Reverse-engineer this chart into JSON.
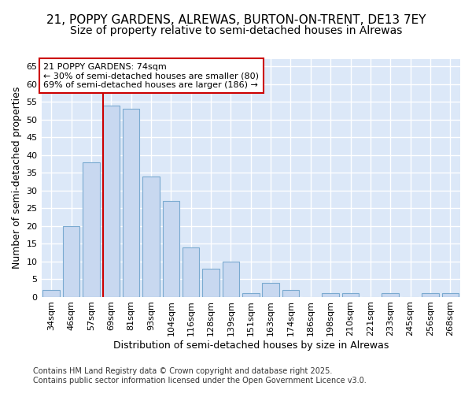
{
  "title_line1": "21, POPPY GARDENS, ALREWAS, BURTON-ON-TRENT, DE13 7EY",
  "title_line2": "Size of property relative to semi-detached houses in Alrewas",
  "xlabel": "Distribution of semi-detached houses by size in Alrewas",
  "ylabel": "Number of semi-detached properties",
  "categories": [
    "34sqm",
    "46sqm",
    "57sqm",
    "69sqm",
    "81sqm",
    "93sqm",
    "104sqm",
    "116sqm",
    "128sqm",
    "139sqm",
    "151sqm",
    "163sqm",
    "174sqm",
    "186sqm",
    "198sqm",
    "210sqm",
    "221sqm",
    "233sqm",
    "245sqm",
    "256sqm",
    "268sqm"
  ],
  "values": [
    2,
    20,
    38,
    54,
    53,
    34,
    27,
    14,
    8,
    10,
    1,
    4,
    2,
    0,
    1,
    1,
    0,
    1,
    0,
    1,
    1
  ],
  "bar_color": "#c8d8f0",
  "bar_edge_color": "#7aaad0",
  "vline_bar_index": 3,
  "vline_color": "#cc0000",
  "ylim": [
    0,
    67
  ],
  "yticks": [
    0,
    5,
    10,
    15,
    20,
    25,
    30,
    35,
    40,
    45,
    50,
    55,
    60,
    65
  ],
  "annotation_title": "21 POPPY GARDENS: 74sqm",
  "annotation_line1": "← 30% of semi-detached houses are smaller (80)",
  "annotation_line2": "69% of semi-detached houses are larger (186) →",
  "annotation_box_color": "#ffffff",
  "annotation_box_edge": "#cc0000",
  "footer_line1": "Contains HM Land Registry data © Crown copyright and database right 2025.",
  "footer_line2": "Contains public sector information licensed under the Open Government Licence v3.0.",
  "background_color": "#ffffff",
  "plot_bg_color": "#dce8f8",
  "grid_color": "#ffffff",
  "title_fontsize": 11,
  "subtitle_fontsize": 10,
  "axis_label_fontsize": 9,
  "tick_fontsize": 8,
  "annotation_fontsize": 8,
  "footer_fontsize": 7
}
